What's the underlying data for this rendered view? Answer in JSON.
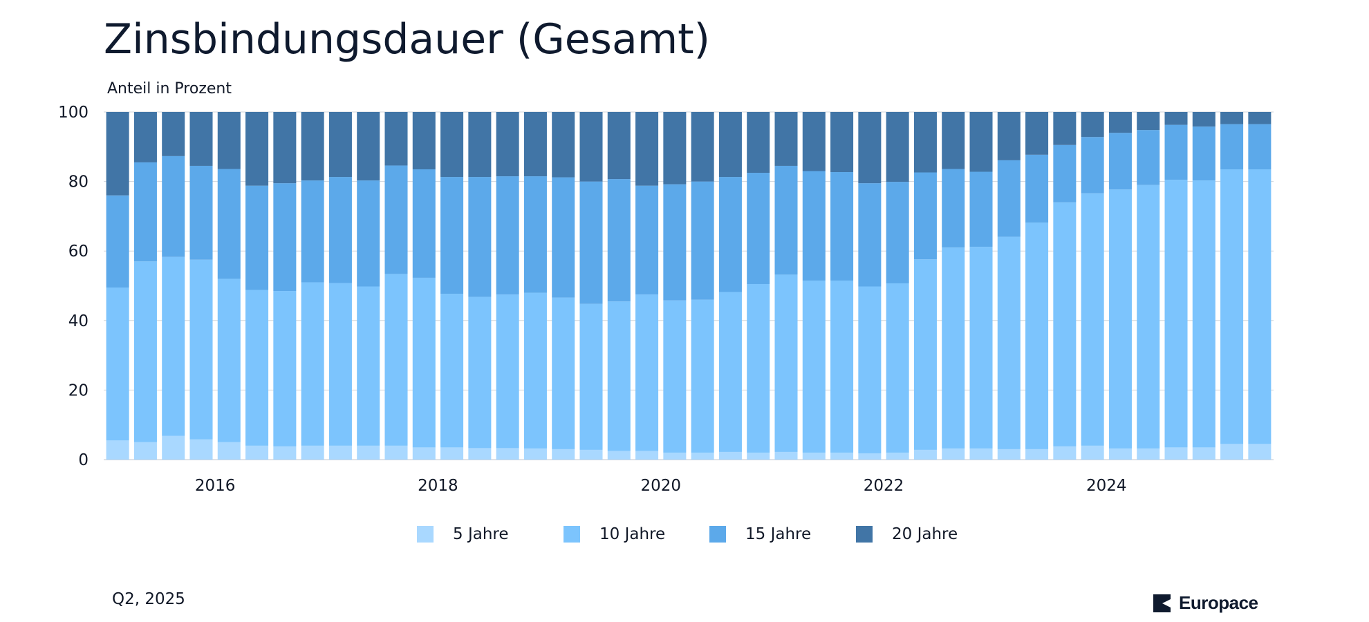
{
  "page": {
    "title": "Zinsbindungsdauer (Gesamt)",
    "footnote": "Q2, 2025",
    "brand": "Europace"
  },
  "colors": {
    "s5": "#a9d8ff",
    "s10": "#7cc4fd",
    "s15": "#5ca9ea",
    "s20": "#4175a6",
    "grid": "#d1d5db",
    "text": "#111827",
    "brand": "#0f1a2e"
  },
  "chart_data": {
    "type": "bar",
    "stacked": true,
    "title": "Zinsbindungsdauer (Gesamt)",
    "ylabel": "Anteil in Prozent",
    "xlabel": "",
    "ylim": [
      0,
      100
    ],
    "yticks": [
      0,
      20,
      40,
      60,
      80,
      100
    ],
    "xticks": [
      "2016",
      "2018",
      "2020",
      "2022",
      "2024"
    ],
    "grid": true,
    "legend_position": "bottom",
    "categories": [
      "2015 Q1",
      "2015 Q2",
      "2015 Q3",
      "2015 Q4",
      "2016 Q1",
      "2016 Q2",
      "2016 Q3",
      "2016 Q4",
      "2017 Q1",
      "2017 Q2",
      "2017 Q3",
      "2017 Q4",
      "2018 Q1",
      "2018 Q2",
      "2018 Q3",
      "2018 Q4",
      "2019 Q1",
      "2019 Q2",
      "2019 Q3",
      "2019 Q4",
      "2020 Q1",
      "2020 Q2",
      "2020 Q3",
      "2020 Q4",
      "2021 Q1",
      "2021 Q2",
      "2021 Q3",
      "2021 Q4",
      "2022 Q1",
      "2022 Q2",
      "2022 Q3",
      "2022 Q4",
      "2023 Q1",
      "2023 Q2",
      "2023 Q3",
      "2023 Q4",
      "2024 Q1",
      "2024 Q2",
      "2024 Q3",
      "2024 Q4",
      "2025 Q1",
      "2025 Q2"
    ],
    "series": [
      {
        "name": "5 Jahre",
        "color_key": "s5",
        "values": [
          5.5,
          5.0,
          6.8,
          5.8,
          5.0,
          4.0,
          3.8,
          4.0,
          4.0,
          4.0,
          4.0,
          3.5,
          3.5,
          3.3,
          3.3,
          3.2,
          3.0,
          2.8,
          2.5,
          2.5,
          2.0,
          2.0,
          2.2,
          2.0,
          2.2,
          2.0,
          2.0,
          1.8,
          2.0,
          2.8,
          3.2,
          3.2,
          3.0,
          3.0,
          3.8,
          4.0,
          3.2,
          3.2,
          3.5,
          3.5,
          4.5,
          4.5
        ]
      },
      {
        "name": "10 Jahre",
        "color_key": "s10",
        "values": [
          44.0,
          52.0,
          51.5,
          51.7,
          47.0,
          44.8,
          44.7,
          47.0,
          46.8,
          45.8,
          49.4,
          48.8,
          44.2,
          43.5,
          44.2,
          44.8,
          43.6,
          42.0,
          43.0,
          45.0,
          43.8,
          44.0,
          46.0,
          48.5,
          51.0,
          49.5,
          49.5,
          48.0,
          48.7,
          54.8,
          57.8,
          58.0,
          61.1,
          65.2,
          70.2,
          72.6,
          74.5,
          75.8,
          77.0,
          76.8,
          79.0,
          79.0
        ]
      },
      {
        "name": "15 Jahre",
        "color_key": "s15",
        "values": [
          26.5,
          28.5,
          29.0,
          27.0,
          31.6,
          30.0,
          31.0,
          29.3,
          30.5,
          30.5,
          31.2,
          31.2,
          33.6,
          34.5,
          34.0,
          33.5,
          34.6,
          35.2,
          35.2,
          31.3,
          33.4,
          34.0,
          33.1,
          32.0,
          31.3,
          31.5,
          31.2,
          29.7,
          29.2,
          25.0,
          22.6,
          21.6,
          22.0,
          19.5,
          16.5,
          16.2,
          16.3,
          15.8,
          15.8,
          15.5,
          13.0,
          13.0
        ]
      },
      {
        "name": "20 Jahre",
        "color_key": "s20",
        "values": [
          24.0,
          14.5,
          12.7,
          15.5,
          16.4,
          21.2,
          20.5,
          19.7,
          18.7,
          19.7,
          15.4,
          16.5,
          18.7,
          18.7,
          18.5,
          18.5,
          18.8,
          20.0,
          19.3,
          21.2,
          20.8,
          20.0,
          18.7,
          17.5,
          15.5,
          17.0,
          17.3,
          20.5,
          20.1,
          17.4,
          16.4,
          17.2,
          13.9,
          12.3,
          9.5,
          7.2,
          6.0,
          5.2,
          3.7,
          4.2,
          3.5,
          3.5
        ]
      }
    ]
  }
}
